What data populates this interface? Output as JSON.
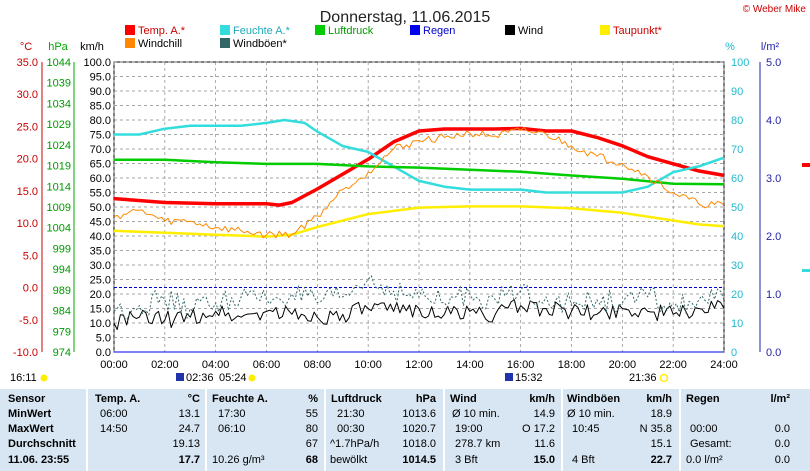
{
  "title": "Donnerstag, 11.06.2015",
  "copyright": "© Weber Mike",
  "legend": [
    {
      "label": "Temp. A.*",
      "color": "#ff0000"
    },
    {
      "label": "Feuchte A.*",
      "color": "#33dddd"
    },
    {
      "label": "Luftdruck",
      "color": "#00cc00"
    },
    {
      "label": "Regen",
      "color": "#0000ee"
    },
    {
      "label": "Wind",
      "color": "#000000"
    },
    {
      "label": "Taupunkt*",
      "color": "#ffee00"
    },
    {
      "label": "Windchill",
      "color": "#ff8800"
    },
    {
      "label": "Windböen*",
      "color": "#336666"
    }
  ],
  "units": {
    "temp": "°C",
    "pressure": "hPa",
    "wind": "km/h",
    "humidity": "%",
    "rain": "l/m²"
  },
  "events": {
    "left": "16:11",
    "left_time2": "02:36",
    "left_time3": "05:24",
    "mid": "15:32",
    "right": "21:36"
  },
  "chart_data": {
    "type": "line",
    "title": "Donnerstag, 11.06.2015",
    "x_ticks": [
      "00:00",
      "02:00",
      "04:00",
      "06:00",
      "08:00",
      "10:00",
      "12:00",
      "14:00",
      "16:00",
      "18:00",
      "20:00",
      "22:00",
      "24:00"
    ],
    "xlim": [
      0,
      24
    ],
    "axes": {
      "temp": {
        "ticks": [
          "35.0",
          "30.0",
          "25.0",
          "20.0",
          "15.0",
          "10.0",
          "5.0",
          "0.0",
          "-5.0",
          "-10.0"
        ],
        "range": [
          -10,
          35
        ]
      },
      "pressure": {
        "ticks": [
          "1044",
          "1039",
          "1034",
          "1029",
          "1024",
          "1019",
          "1014",
          "1009",
          "1004",
          "999",
          "994",
          "989",
          "984",
          "979",
          "974"
        ],
        "range": [
          974,
          1044
        ]
      },
      "wind": {
        "ticks": [
          "100.0",
          "95.0",
          "90.0",
          "85.0",
          "80.0",
          "75.0",
          "70.0",
          "65.0",
          "60.0",
          "55.0",
          "50.0",
          "45.0",
          "40.0",
          "35.0",
          "30.0",
          "25.0",
          "20.0",
          "15.0",
          "10.0",
          "5.0",
          "0.0"
        ],
        "range": [
          0,
          100
        ]
      },
      "humidity": {
        "ticks": [
          "100",
          "90",
          "80",
          "70",
          "60",
          "50",
          "40",
          "30",
          "20",
          "10",
          "0"
        ],
        "range": [
          0,
          100
        ]
      },
      "rain": {
        "ticks": [
          "5.0",
          "4.0",
          "3.0",
          "2.0",
          "1.0",
          "0.0"
        ],
        "range": [
          0,
          5
        ]
      }
    },
    "series": [
      {
        "name": "Temp. A.*",
        "axis": "temp",
        "x": [
          0,
          2,
          4,
          5,
          6,
          6.5,
          7,
          8,
          9,
          10,
          11,
          12,
          13,
          14,
          15,
          16,
          17,
          18,
          19,
          20,
          21,
          22,
          23,
          24
        ],
        "y": [
          13.8,
          13.2,
          13.0,
          13.0,
          13.0,
          12.8,
          13.2,
          15.3,
          17.6,
          19.9,
          22.6,
          24.3,
          24.6,
          24.6,
          24.6,
          24.7,
          24.3,
          24.3,
          23.3,
          22.0,
          20.3,
          19.2,
          18.1,
          17.4
        ]
      },
      {
        "name": "Feuchte A.*",
        "axis": "humidity",
        "x": [
          0,
          1,
          2,
          3,
          4,
          5,
          6,
          6.7,
          7.5,
          8,
          9,
          10,
          11,
          12,
          13,
          14,
          15,
          16,
          17,
          18,
          19,
          20,
          21,
          22,
          23,
          24
        ],
        "y": [
          75,
          75,
          77,
          78,
          78,
          78,
          79,
          80,
          79,
          76,
          71,
          69,
          64,
          59,
          57,
          56,
          56,
          56,
          55,
          55,
          55,
          55,
          57,
          62,
          64,
          67
        ]
      },
      {
        "name": "Luftdruck",
        "axis": "pressure",
        "x": [
          0,
          2,
          4,
          6,
          8,
          10,
          12,
          14,
          16,
          18,
          20,
          22,
          24
        ],
        "y": [
          1020.4,
          1020.4,
          1019.8,
          1019.4,
          1019.4,
          1018.8,
          1018.5,
          1018.0,
          1017.5,
          1016.6,
          1015.8,
          1014.6,
          1014.5
        ]
      },
      {
        "name": "Taupunkt*",
        "axis": "temp",
        "x": [
          0,
          2,
          4,
          6,
          7,
          8,
          10,
          12,
          14,
          16,
          18,
          20,
          22,
          23,
          24
        ],
        "y": [
          8.8,
          8.5,
          8.2,
          7.9,
          8.2,
          9.4,
          11.4,
          12.4,
          12.6,
          12.6,
          12.3,
          11.6,
          10.4,
          9.8,
          9.5
        ]
      },
      {
        "name": "Windchill",
        "axis": "temp",
        "x": [
          0,
          1,
          2,
          3,
          4,
          5,
          6,
          7,
          8,
          9,
          10,
          11,
          12,
          13,
          14,
          15,
          16,
          17,
          18,
          19,
          20,
          21,
          22,
          23,
          24
        ],
        "y": [
          11.0,
          12.0,
          10.3,
          10.3,
          9.3,
          8.8,
          8.2,
          8.3,
          11.1,
          15.2,
          17.9,
          21.5,
          22.8,
          23.3,
          24.0,
          23.5,
          24.4,
          23.8,
          22.0,
          20.4,
          19.3,
          17.3,
          14.7,
          13.0,
          12.8
        ]
      },
      {
        "name": "Wind",
        "axis": "wind",
        "x": [
          0,
          1,
          2,
          3,
          4,
          5,
          6,
          7,
          8,
          9,
          10,
          11,
          12,
          13,
          14,
          15,
          16,
          17,
          18,
          19,
          20,
          21,
          22,
          23,
          24
        ],
        "y": [
          10,
          12,
          11,
          12,
          14,
          12,
          14,
          13,
          12,
          13,
          15,
          14,
          15,
          13,
          14,
          13,
          16,
          15,
          14,
          13,
          15,
          14,
          13,
          15,
          15
        ]
      },
      {
        "name": "Windböen*",
        "axis": "wind",
        "x": [
          0,
          1,
          2,
          3,
          4,
          5,
          6,
          7,
          8,
          9,
          10,
          11,
          12,
          13,
          14,
          15,
          16,
          17,
          18,
          19,
          20,
          21,
          22,
          23,
          24
        ],
        "y": [
          14,
          16,
          18,
          15,
          17,
          19,
          18,
          20,
          17,
          19,
          25,
          21,
          19,
          17,
          20,
          18,
          21,
          19,
          16,
          18,
          17,
          19,
          15,
          18,
          18
        ]
      },
      {
        "name": "Regen",
        "axis": "rain",
        "x": [
          0,
          24
        ],
        "y": [
          0,
          0
        ]
      }
    ],
    "reference_line": {
      "axis": "temp",
      "value": 0
    },
    "grid": true
  },
  "stats": {
    "headers": {
      "sensor": "Sensor",
      "temp": "Temp. A.",
      "temp_unit": "°C",
      "hum": "Feuchte A.",
      "hum_unit": "%",
      "press": "Luftdruck",
      "press_unit": "hPa",
      "wind": "Wind",
      "wind_unit": "km/h",
      "gust": "Windböen",
      "gust_unit": "km/h",
      "rain": "Regen",
      "rain_unit": "l/m²"
    },
    "rows": [
      {
        "label": "MinWert",
        "temp_time": "06:00",
        "temp_val": "13.1",
        "hum_time": "17:30",
        "hum_val": "55",
        "press_time": "21:30",
        "press_val": "1013.6",
        "wind_desc": "Ø 10 min.",
        "wind_val": "14.9",
        "gust_desc": "Ø 10 min.",
        "gust_val": "18.9",
        "rain_desc": "",
        "rain_val": ""
      },
      {
        "label": "MaxWert",
        "temp_time": "14:50",
        "temp_val": "24.7",
        "hum_time": "06:10",
        "hum_val": "80",
        "press_time": "00:30",
        "press_val": "1020.7",
        "wind_desc": "19:00",
        "wind_val": "O 17.2",
        "gust_desc": "10:45",
        "gust_val": "N 35.8",
        "rain_desc": "00:00",
        "rain_val": "0.0"
      },
      {
        "label": "Durchschnitt",
        "temp_time": "",
        "temp_val": "19.13",
        "hum_time": "",
        "hum_val": "67",
        "press_time": "^1.7hPa/h",
        "press_val": "1018.0",
        "wind_desc": "278.7 km",
        "wind_val": "11.6",
        "gust_desc": "",
        "gust_val": "15.1",
        "rain_desc": "Gesamt:",
        "rain_val": "0.0"
      },
      {
        "label": "11.06. 23:55",
        "temp_time": "",
        "temp_val": "17.7",
        "hum_time": "10.26 g/m³",
        "hum_val": "68",
        "press_time": "bewölkt",
        "press_val": "1014.5",
        "wind_desc": "3 Bft",
        "wind_val": "15.0",
        "gust_desc": "4 Bft",
        "gust_val": "22.7",
        "rain_desc": "0.0 l/m²",
        "rain_val": "0.0"
      }
    ]
  }
}
